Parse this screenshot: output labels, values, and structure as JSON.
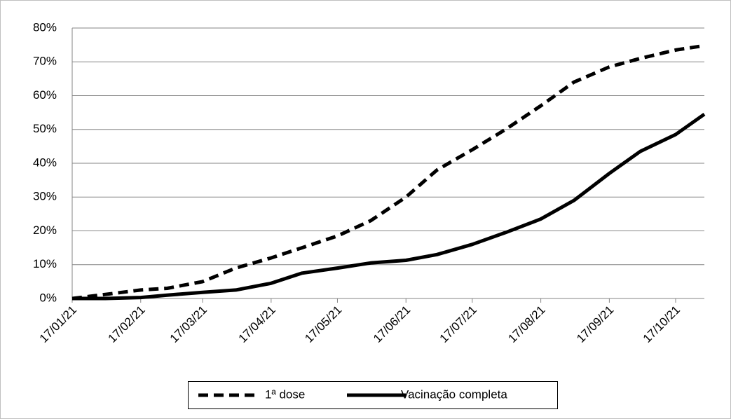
{
  "chart_data": {
    "type": "line",
    "x": [
      "17/01/21",
      "01/02/21",
      "17/02/21",
      "01/03/21",
      "17/03/21",
      "01/04/21",
      "17/04/21",
      "01/05/21",
      "17/05/21",
      "01/06/21",
      "17/06/21",
      "01/07/21",
      "17/07/21",
      "01/08/21",
      "17/08/21",
      "01/09/21",
      "17/09/21",
      "01/10/21",
      "17/10/21",
      "30/10/21"
    ],
    "series": [
      {
        "name": "1ª dose",
        "color": "#000000",
        "dash": true,
        "values": [
          0,
          1.2,
          2.5,
          3,
          5,
          9,
          12,
          15,
          18.5,
          23,
          30,
          38,
          44,
          50,
          57,
          64,
          68.5,
          71,
          73.5,
          74.8
        ]
      },
      {
        "name": "Vacinação completa",
        "color": "#000000",
        "dash": false,
        "values": [
          0,
          0,
          0.3,
          1,
          1.8,
          2.5,
          4.5,
          7.5,
          9,
          10.5,
          11.3,
          13,
          16,
          19.5,
          23.5,
          29,
          37,
          43.5,
          48.5,
          54.5
        ]
      }
    ],
    "xlim": [
      "17/01/21",
      "30/10/21"
    ],
    "xticks": [
      "17/01/21",
      "17/02/21",
      "17/03/21",
      "17/04/21",
      "17/05/21",
      "17/06/21",
      "17/07/21",
      "17/08/21",
      "17/09/21",
      "17/10/21"
    ],
    "ylim": [
      0,
      80
    ],
    "yticks": [
      {
        "value": 0,
        "label": "0%"
      },
      {
        "value": 10,
        "label": "10%"
      },
      {
        "value": 20,
        "label": "20%"
      },
      {
        "value": 30,
        "label": "30%"
      },
      {
        "value": 40,
        "label": "40%"
      },
      {
        "value": 50,
        "label": "50%"
      },
      {
        "value": 60,
        "label": "60%"
      },
      {
        "value": 70,
        "label": "70%"
      },
      {
        "value": 80,
        "label": "80%"
      }
    ],
    "grid": true,
    "legend": "bottom"
  }
}
